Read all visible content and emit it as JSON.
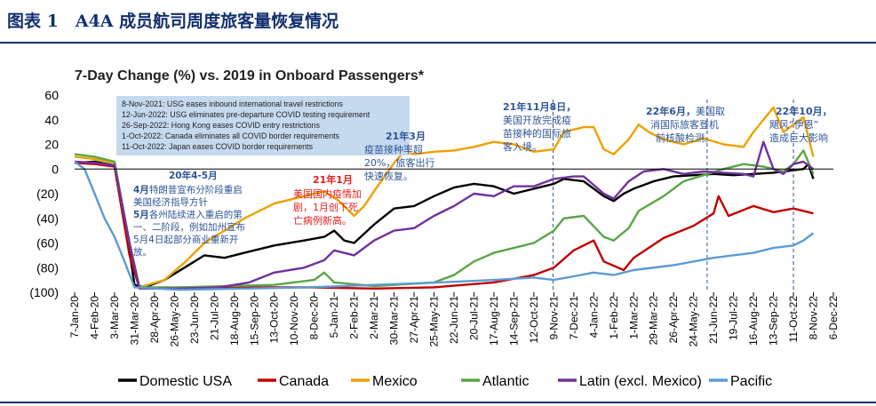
{
  "caption": "图表 1　A4A 成员航司周度旅客量恢复情况",
  "chart_data": {
    "type": "line",
    "title": "7-Day Change (%) vs. 2019 in Onboard Passengers*",
    "xlabel": "",
    "ylabel": "",
    "ylim": [
      -100,
      60
    ],
    "y_ticks": [
      60,
      40,
      20,
      0,
      -20,
      -40,
      -60,
      -80,
      -100
    ],
    "y_tick_labels": [
      "60",
      "40",
      "20",
      "0",
      "(20)",
      "(40)",
      "(60)",
      "(80)",
      "(100)"
    ],
    "x_start": "2020-01-07",
    "x_end": "2022-12-06",
    "x_ticks": [
      "2020-01-07",
      "2020-02-04",
      "2020-03-03",
      "2020-03-31",
      "2020-04-28",
      "2020-05-26",
      "2020-06-23",
      "2020-07-21",
      "2020-08-18",
      "2020-09-15",
      "2020-10-13",
      "2020-11-10",
      "2020-12-08",
      "2021-01-05",
      "2021-02-02",
      "2021-03-02",
      "2021-03-30",
      "2021-04-27",
      "2021-05-25",
      "2021-06-22",
      "2021-07-20",
      "2021-08-17",
      "2021-09-14",
      "2021-10-12",
      "2021-11-09",
      "2021-12-07",
      "2022-01-04",
      "2022-02-01",
      "2022-03-01",
      "2022-03-29",
      "2022-04-26",
      "2022-05-24",
      "2022-06-21",
      "2022-07-19",
      "2022-08-16",
      "2022-09-13",
      "2022-10-11",
      "2022-11-08",
      "2022-12-06"
    ],
    "x_tick_labels": [
      "7-Jan-20",
      "4-Feb-20",
      "3-Mar-20",
      "31-Mar-20",
      "28-Apr-20",
      "26-May-20",
      "23-Jun-20",
      "21-Jul-20",
      "18-Aug-20",
      "15-Sep-20",
      "13-Oct-20",
      "10-Nov-20",
      "8-Dec-20",
      "5-Jan-21",
      "2-Feb-21",
      "2-Mar-21",
      "30-Mar-21",
      "27-Apr-21",
      "25-May-21",
      "22-Jun-21",
      "20-Jul-21",
      "17-Aug-21",
      "14-Sep-21",
      "12-Oct-21",
      "9-Nov-21",
      "7-Dec-21",
      "4-Jan-22",
      "1-Feb-22",
      "1-Mar-22",
      "29-Mar-22",
      "26-Apr-22",
      "24-May-22",
      "21-Jun-22",
      "19-Jul-22",
      "16-Aug-22",
      "13-Sep-22",
      "11-Oct-22",
      "8-Nov-22",
      "6-Dec-22"
    ],
    "grid": false,
    "legend_position": "bottom",
    "reference_lines": [
      "2021-11-08",
      "2022-06-12",
      "2022-10-11"
    ],
    "series": [
      {
        "name": "Domestic USA",
        "color": "#000000",
        "points": [
          [
            "2020-01-07",
            5
          ],
          [
            "2020-02-04",
            6
          ],
          [
            "2020-03-03",
            3
          ],
          [
            "2020-03-17",
            -40
          ],
          [
            "2020-03-31",
            -94
          ],
          [
            "2020-04-14",
            -96
          ],
          [
            "2020-05-12",
            -90
          ],
          [
            "2020-06-09",
            -80
          ],
          [
            "2020-07-07",
            -70
          ],
          [
            "2020-08-04",
            -72
          ],
          [
            "2020-09-01",
            -68
          ],
          [
            "2020-10-13",
            -62
          ],
          [
            "2020-11-24",
            -58
          ],
          [
            "2020-12-22",
            -55
          ],
          [
            "2021-01-05",
            -50
          ],
          [
            "2021-01-19",
            -58
          ],
          [
            "2021-02-02",
            -60
          ],
          [
            "2021-03-02",
            -45
          ],
          [
            "2021-03-30",
            -32
          ],
          [
            "2021-04-27",
            -30
          ],
          [
            "2021-05-25",
            -22
          ],
          [
            "2021-06-22",
            -15
          ],
          [
            "2021-07-20",
            -12
          ],
          [
            "2021-08-17",
            -14
          ],
          [
            "2021-09-14",
            -20
          ],
          [
            "2021-10-12",
            -16
          ],
          [
            "2021-11-09",
            -12
          ],
          [
            "2021-11-23",
            -8
          ],
          [
            "2021-12-21",
            -10
          ],
          [
            "2022-01-18",
            -22
          ],
          [
            "2022-02-01",
            -26
          ],
          [
            "2022-02-15",
            -20
          ],
          [
            "2022-03-01",
            -16
          ],
          [
            "2022-03-29",
            -10
          ],
          [
            "2022-04-26",
            -6
          ],
          [
            "2022-05-24",
            -5
          ],
          [
            "2022-06-21",
            -4
          ],
          [
            "2022-07-19",
            -5
          ],
          [
            "2022-08-16",
            -4
          ],
          [
            "2022-09-13",
            -3
          ],
          [
            "2022-09-27",
            -2
          ],
          [
            "2022-10-11",
            -1
          ],
          [
            "2022-10-25",
            0
          ],
          [
            "2022-11-01",
            4
          ],
          [
            "2022-11-08",
            -8
          ]
        ]
      },
      {
        "name": "Canada",
        "color": "#c00000",
        "points": [
          [
            "2020-01-07",
            5
          ],
          [
            "2020-02-04",
            4
          ],
          [
            "2020-03-03",
            2
          ],
          [
            "2020-03-24",
            -70
          ],
          [
            "2020-04-07",
            -97
          ],
          [
            "2020-06-02",
            -97
          ],
          [
            "2020-09-01",
            -96
          ],
          [
            "2020-12-01",
            -96
          ],
          [
            "2021-03-02",
            -97
          ],
          [
            "2021-05-25",
            -96
          ],
          [
            "2021-08-17",
            -92
          ],
          [
            "2021-10-12",
            -86
          ],
          [
            "2021-11-09",
            -80
          ],
          [
            "2021-12-07",
            -66
          ],
          [
            "2022-01-04",
            -58
          ],
          [
            "2022-01-18",
            -75
          ],
          [
            "2022-02-15",
            -82
          ],
          [
            "2022-03-01",
            -72
          ],
          [
            "2022-04-12",
            -56
          ],
          [
            "2022-05-24",
            -46
          ],
          [
            "2022-06-21",
            -36
          ],
          [
            "2022-06-28",
            -22
          ],
          [
            "2022-07-12",
            -38
          ],
          [
            "2022-08-16",
            -30
          ],
          [
            "2022-09-13",
            -35
          ],
          [
            "2022-10-11",
            -32
          ],
          [
            "2022-11-08",
            -36
          ]
        ]
      },
      {
        "name": "Mexico",
        "color": "#f0a000",
        "points": [
          [
            "2020-01-07",
            10
          ],
          [
            "2020-02-04",
            8
          ],
          [
            "2020-03-03",
            5
          ],
          [
            "2020-03-24",
            -60
          ],
          [
            "2020-04-07",
            -96
          ],
          [
            "2020-05-12",
            -90
          ],
          [
            "2020-06-09",
            -76
          ],
          [
            "2020-07-07",
            -60
          ],
          [
            "2020-08-04",
            -50
          ],
          [
            "2020-09-01",
            -40
          ],
          [
            "2020-10-13",
            -28
          ],
          [
            "2020-11-24",
            -22
          ],
          [
            "2020-12-22",
            -18
          ],
          [
            "2021-01-12",
            -26
          ],
          [
            "2021-02-02",
            -38
          ],
          [
            "2021-02-16",
            -30
          ],
          [
            "2021-03-02",
            -18
          ],
          [
            "2021-03-30",
            5
          ],
          [
            "2021-04-13",
            14
          ],
          [
            "2021-04-27",
            12
          ],
          [
            "2021-05-25",
            14
          ],
          [
            "2021-06-22",
            15
          ],
          [
            "2021-07-20",
            18
          ],
          [
            "2021-08-17",
            22
          ],
          [
            "2021-09-14",
            20
          ],
          [
            "2021-10-12",
            14
          ],
          [
            "2021-11-09",
            16
          ],
          [
            "2021-11-23",
            30
          ],
          [
            "2021-12-21",
            34
          ],
          [
            "2022-01-04",
            34
          ],
          [
            "2022-01-18",
            16
          ],
          [
            "2022-02-01",
            12
          ],
          [
            "2022-02-22",
            24
          ],
          [
            "2022-03-08",
            36
          ],
          [
            "2022-03-22",
            30
          ],
          [
            "2022-04-12",
            24
          ],
          [
            "2022-05-10",
            20
          ],
          [
            "2022-06-07",
            25
          ],
          [
            "2022-07-05",
            20
          ],
          [
            "2022-08-02",
            18
          ],
          [
            "2022-08-16",
            30
          ],
          [
            "2022-08-30",
            40
          ],
          [
            "2022-09-13",
            50
          ],
          [
            "2022-09-27",
            30
          ],
          [
            "2022-10-11",
            36
          ],
          [
            "2022-10-25",
            42
          ],
          [
            "2022-11-08",
            10
          ]
        ]
      },
      {
        "name": "Atlantic",
        "color": "#5aa646",
        "points": [
          [
            "2020-01-07",
            12
          ],
          [
            "2020-02-04",
            10
          ],
          [
            "2020-03-03",
            6
          ],
          [
            "2020-03-24",
            -60
          ],
          [
            "2020-04-07",
            -96
          ],
          [
            "2020-06-02",
            -96
          ],
          [
            "2020-08-04",
            -95
          ],
          [
            "2020-10-13",
            -94
          ],
          [
            "2020-12-08",
            -90
          ],
          [
            "2020-12-22",
            -84
          ],
          [
            "2021-01-05",
            -92
          ],
          [
            "2021-03-02",
            -95
          ],
          [
            "2021-05-25",
            -92
          ],
          [
            "2021-06-22",
            -86
          ],
          [
            "2021-07-20",
            -75
          ],
          [
            "2021-08-17",
            -68
          ],
          [
            "2021-09-14",
            -64
          ],
          [
            "2021-10-12",
            -60
          ],
          [
            "2021-11-09",
            -50
          ],
          [
            "2021-11-23",
            -40
          ],
          [
            "2021-12-21",
            -38
          ],
          [
            "2022-01-18",
            -55
          ],
          [
            "2022-02-01",
            -58
          ],
          [
            "2022-02-22",
            -48
          ],
          [
            "2022-03-08",
            -34
          ],
          [
            "2022-04-12",
            -22
          ],
          [
            "2022-05-10",
            -10
          ],
          [
            "2022-06-07",
            -5
          ],
          [
            "2022-07-05",
            0
          ],
          [
            "2022-08-02",
            4
          ],
          [
            "2022-08-30",
            2
          ],
          [
            "2022-09-13",
            0
          ],
          [
            "2022-09-27",
            -2
          ],
          [
            "2022-10-11",
            4
          ],
          [
            "2022-10-25",
            15
          ],
          [
            "2022-11-08",
            -4
          ]
        ]
      },
      {
        "name": "Latin (excl. Mexico)",
        "color": "#7030a0",
        "points": [
          [
            "2020-01-07",
            6
          ],
          [
            "2020-02-04",
            5
          ],
          [
            "2020-03-03",
            3
          ],
          [
            "2020-03-24",
            -60
          ],
          [
            "2020-04-07",
            -97
          ],
          [
            "2020-06-02",
            -97
          ],
          [
            "2020-07-28",
            -96
          ],
          [
            "2020-09-08",
            -92
          ],
          [
            "2020-10-13",
            -84
          ],
          [
            "2020-11-24",
            -80
          ],
          [
            "2020-12-22",
            -74
          ],
          [
            "2021-01-05",
            -66
          ],
          [
            "2021-02-02",
            -70
          ],
          [
            "2021-03-02",
            -58
          ],
          [
            "2021-03-30",
            -50
          ],
          [
            "2021-04-27",
            -48
          ],
          [
            "2021-05-25",
            -38
          ],
          [
            "2021-06-22",
            -30
          ],
          [
            "2021-07-20",
            -20
          ],
          [
            "2021-08-17",
            -22
          ],
          [
            "2021-09-14",
            -14
          ],
          [
            "2021-10-12",
            -14
          ],
          [
            "2021-11-09",
            -8
          ],
          [
            "2021-12-07",
            -6
          ],
          [
            "2021-12-21",
            -6
          ],
          [
            "2022-01-18",
            -20
          ],
          [
            "2022-02-01",
            -24
          ],
          [
            "2022-02-22",
            -10
          ],
          [
            "2022-03-15",
            -2
          ],
          [
            "2022-04-12",
            0
          ],
          [
            "2022-05-10",
            -4
          ],
          [
            "2022-06-07",
            -2
          ],
          [
            "2022-07-05",
            -3
          ],
          [
            "2022-08-02",
            -4
          ],
          [
            "2022-08-16",
            -6
          ],
          [
            "2022-08-30",
            22
          ],
          [
            "2022-09-13",
            0
          ],
          [
            "2022-09-27",
            -4
          ],
          [
            "2022-10-11",
            4
          ],
          [
            "2022-10-25",
            6
          ],
          [
            "2022-11-08",
            0
          ]
        ]
      },
      {
        "name": "Pacific",
        "color": "#5b9bd5",
        "points": [
          [
            "2020-01-07",
            6
          ],
          [
            "2020-01-21",
            0
          ],
          [
            "2020-02-04",
            -20
          ],
          [
            "2020-02-18",
            -40
          ],
          [
            "2020-03-03",
            -55
          ],
          [
            "2020-03-17",
            -75
          ],
          [
            "2020-03-31",
            -96
          ],
          [
            "2020-06-02",
            -98
          ],
          [
            "2020-09-01",
            -97
          ],
          [
            "2020-12-01",
            -96
          ],
          [
            "2021-03-02",
            -94
          ],
          [
            "2021-06-01",
            -92
          ],
          [
            "2021-08-17",
            -90
          ],
          [
            "2021-10-12",
            -88
          ],
          [
            "2021-11-09",
            -90
          ],
          [
            "2021-12-07",
            -87
          ],
          [
            "2022-01-04",
            -84
          ],
          [
            "2022-02-01",
            -86
          ],
          [
            "2022-03-01",
            -82
          ],
          [
            "2022-04-26",
            -78
          ],
          [
            "2022-06-21",
            -72
          ],
          [
            "2022-08-16",
            -68
          ],
          [
            "2022-09-13",
            -64
          ],
          [
            "2022-10-11",
            -62
          ],
          [
            "2022-10-25",
            -58
          ],
          [
            "2022-11-08",
            -52
          ]
        ]
      }
    ]
  },
  "notes_box": [
    "8-Nov-2021: USG eases inbound international travel restrictions",
    "12-Jun-2022: USG eliminates pre-departure COVID testing requirement",
    "26-Sep-2022: Hong Kong eases COVID entry restrictions",
    "1-Oct-2022: Canada eliminates all COVID border requirements",
    "11-Oct-2022: Japan eases COVID border requirements"
  ],
  "annotations": {
    "may2020": {
      "heading": "20年4-5月",
      "lines": [
        "4月特朗普宣布分阶段重启",
        "美国经济指导方针",
        "5月各州陆续进入重启的第",
        "一、二阶段，例如加州宣布",
        "5月4日起部分商业重新开",
        "放。"
      ],
      "color": "#2f5597",
      "strong_prefixes": [
        "4月",
        "5月"
      ]
    },
    "jan2021": {
      "heading": "21年1月",
      "lines": [
        "美国国内疫情加",
        "剧，1月创下死",
        "亡病例新高。"
      ],
      "color": "#e0201c"
    },
    "mar2021": {
      "heading": "21年3月",
      "lines": [
        "疫苗接种率超",
        "20%，旅客出行",
        "快速恢复。"
      ],
      "color": "#2f5597"
    },
    "nov2021": {
      "heading": "21年11月8日，",
      "lines": [
        "美国开放完成疫",
        "苗接种的国际旅",
        "客入境。"
      ],
      "color": "#2f5597"
    },
    "jun2022": {
      "heading": "22年6月，",
      "heading_rest": "美国取",
      "lines": [
        "消国际旅客登机",
        "前核酸检测。"
      ],
      "color": "#2f5597"
    },
    "oct2022": {
      "heading": "22年10月，",
      "lines": [
        "飓风“伊恩”",
        "造成巨大影响"
      ],
      "color": "#2f5597"
    }
  }
}
